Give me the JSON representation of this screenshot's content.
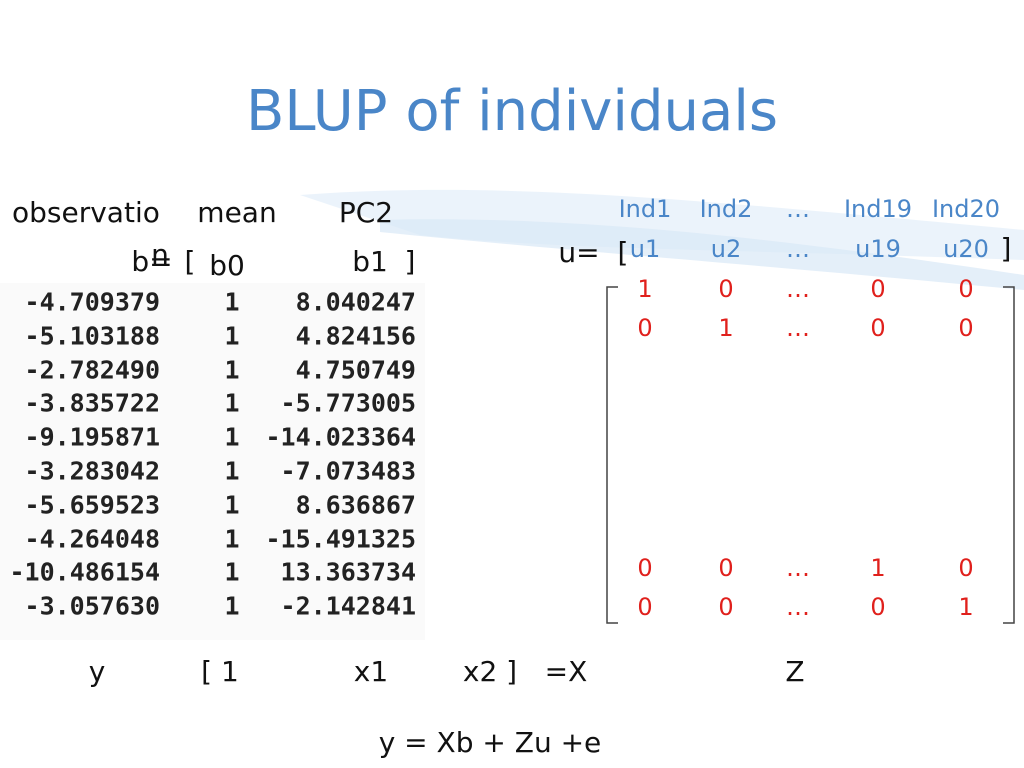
{
  "title": "BLUP of individuals",
  "left": {
    "headers": [
      "observatio",
      "n",
      "mean",
      "PC2"
    ],
    "coef": [
      "b=",
      "[",
      "b0",
      "b1",
      "]"
    ],
    "rows": [
      [
        "-4.709379",
        "1",
        "8.040247"
      ],
      [
        "-5.103188",
        "1",
        "4.824156"
      ],
      [
        "-2.782490",
        "1",
        "4.750749"
      ],
      [
        "-3.835722",
        "1",
        "-5.773005"
      ],
      [
        "-9.195871",
        "1",
        "-14.023364"
      ],
      [
        "-3.283042",
        "1",
        "-7.073483"
      ],
      [
        "-5.659523",
        "1",
        "8.636867"
      ],
      [
        "-4.264048",
        "1",
        "-15.491325"
      ],
      [
        "-10.486154",
        "1",
        "13.363734"
      ],
      [
        "-3.057630",
        "1",
        "-2.142841"
      ]
    ],
    "labels": [
      "y",
      "[ 1",
      "x1",
      "x2 ]",
      "=X"
    ]
  },
  "right": {
    "headers": [
      "Ind1",
      "Ind2",
      "…",
      "Ind19",
      "Ind20"
    ],
    "u_prefix": [
      "u=",
      "["
    ],
    "u": [
      "u1",
      "u2",
      "…",
      "u19",
      "u20"
    ],
    "u_suffix": "]",
    "matrix": [
      [
        "1",
        "0",
        "…",
        "0",
        "0"
      ],
      [
        "0",
        "1",
        "…",
        "0",
        "0"
      ],
      [
        "0",
        "0",
        "…",
        "1",
        "0"
      ],
      [
        "0",
        "0",
        "…",
        "0",
        "1"
      ]
    ],
    "label": "Z"
  },
  "equation": "y = Xb + Zu +e"
}
